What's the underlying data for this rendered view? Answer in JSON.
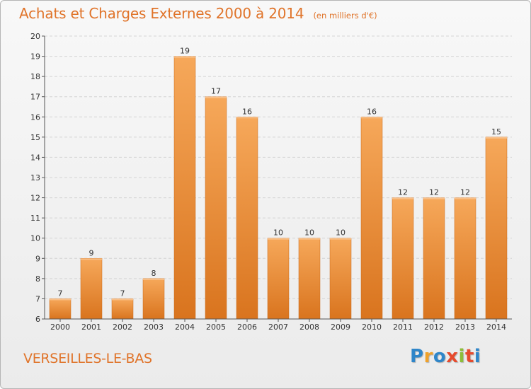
{
  "page": {
    "title": "Achats et Charges Externes 2000 à 2014",
    "subtitle": "(en milliers d'€)",
    "location": "VERSEILLES-LE-BAS",
    "brand": "Proxiti"
  },
  "colors": {
    "title": "#e0742a",
    "bar_top": "#f6a85a",
    "bar_bottom": "#d9741e",
    "grid": "#d4d4d4",
    "axis": "#555555",
    "brand_letters": [
      "#2f86c9",
      "#f0a22b",
      "#2f86c9",
      "#e64a2d",
      "#8dbd3a",
      "#e64a2d",
      "#2f86c9"
    ]
  },
  "chart_data": {
    "type": "bar",
    "title": "Achats et Charges Externes 2000 à 2014",
    "subtitle": "(en milliers d'€)",
    "xlabel": "",
    "ylabel": "",
    "categories": [
      "2000",
      "2001",
      "2002",
      "2003",
      "2004",
      "2005",
      "2006",
      "2007",
      "2008",
      "2009",
      "2010",
      "2011",
      "2012",
      "2013",
      "2014"
    ],
    "values": [
      7,
      9,
      7,
      8,
      19,
      17,
      16,
      10,
      10,
      10,
      16,
      12,
      12,
      12,
      15
    ],
    "ylim": [
      6,
      20
    ],
    "yticks": [
      6,
      7,
      8,
      9,
      10,
      11,
      12,
      13,
      14,
      15,
      16,
      17,
      18,
      19,
      20
    ],
    "grid": true,
    "data_labels": true
  }
}
